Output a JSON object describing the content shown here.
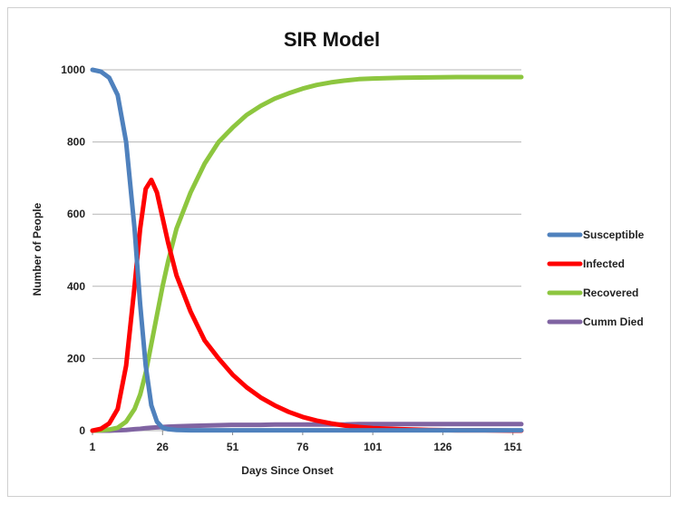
{
  "chart_data": {
    "type": "line",
    "title": "SIR Model",
    "xlabel": "Days Since Onset",
    "ylabel": "Number of People",
    "xlim": [
      1,
      154
    ],
    "ylim": [
      0,
      1000
    ],
    "x_ticks": [
      "1",
      "26",
      "51",
      "76",
      "101",
      "126",
      "151"
    ],
    "y_ticks": [
      "0",
      "200",
      "400",
      "600",
      "800",
      "1000"
    ],
    "grid": true,
    "legend_position": "right",
    "x": [
      1,
      4,
      7,
      10,
      13,
      16,
      18,
      20,
      22,
      24,
      26,
      28,
      31,
      36,
      41,
      46,
      51,
      56,
      61,
      66,
      71,
      76,
      81,
      86,
      91,
      96,
      101,
      111,
      121,
      131,
      141,
      151,
      154
    ],
    "series": [
      {
        "name": "Susceptible",
        "color": "#4f81bd",
        "values": [
          1000,
          995,
          978,
          930,
          800,
          560,
          350,
          180,
          70,
          25,
          8,
          4,
          2,
          1,
          1,
          1,
          1,
          1,
          1,
          1,
          1,
          1,
          1,
          1,
          1,
          1,
          1,
          1,
          1,
          1,
          1,
          1,
          1
        ]
      },
      {
        "name": "Infected",
        "color": "#ff0000",
        "values": [
          0,
          5,
          20,
          60,
          180,
          400,
          560,
          670,
          695,
          660,
          590,
          520,
          430,
          330,
          250,
          200,
          155,
          120,
          92,
          70,
          52,
          38,
          28,
          20,
          14,
          10,
          7,
          4,
          2,
          1,
          1,
          0,
          0
        ]
      },
      {
        "name": "Recovered",
        "color": "#8dc63f",
        "values": [
          0,
          1,
          3,
          8,
          25,
          60,
          100,
          160,
          240,
          320,
          400,
          470,
          560,
          660,
          740,
          800,
          840,
          875,
          900,
          920,
          935,
          948,
          958,
          965,
          970,
          974,
          976,
          978,
          979,
          980,
          980,
          980,
          980
        ]
      },
      {
        "name": "Cumm Died",
        "color": "#8064a2",
        "values": [
          0,
          0,
          0,
          1,
          2,
          4,
          5,
          7,
          8,
          9,
          10,
          11,
          12,
          13,
          14,
          15,
          16,
          16,
          16,
          17,
          17,
          17,
          17,
          17,
          17,
          18,
          18,
          18,
          18,
          18,
          18,
          18,
          18
        ]
      }
    ]
  }
}
